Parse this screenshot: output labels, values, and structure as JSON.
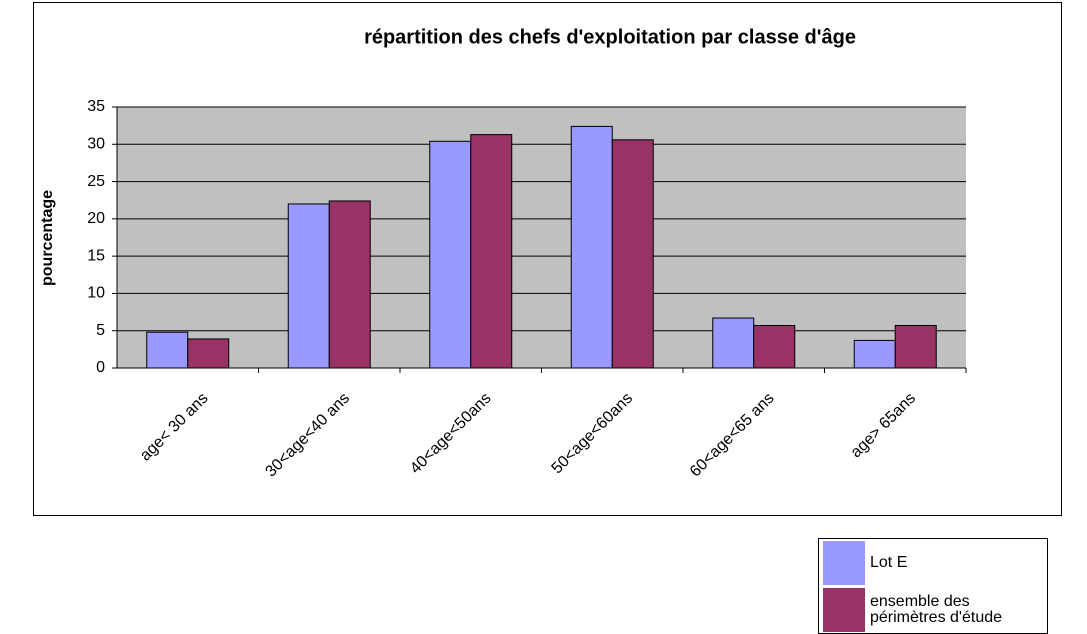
{
  "chart_data": {
    "type": "bar",
    "title": "répartition des chefs d'exploitation par classe d'âge",
    "y_label": "pourcentage",
    "categories": [
      "age< 30 ans",
      "30<age<40 ans",
      "40<age<50ans",
      "50<age<60ans",
      "60<age<65 ans",
      "age> 65ans"
    ],
    "series": [
      {
        "name": "Lot E",
        "color": "#9999ff",
        "values": [
          4.8,
          22,
          30.4,
          32.4,
          6.7,
          3.7
        ]
      },
      {
        "name": "ensemble des périmètres d'étude",
        "color": "#993366",
        "values": [
          3.9,
          22.4,
          31.3,
          30.6,
          5.7,
          5.7
        ]
      }
    ],
    "ylim": [
      0,
      35
    ],
    "yticks": [
      0,
      5,
      10,
      15,
      20,
      25,
      30,
      35
    ],
    "grid": true,
    "legend": "bottom-right"
  }
}
